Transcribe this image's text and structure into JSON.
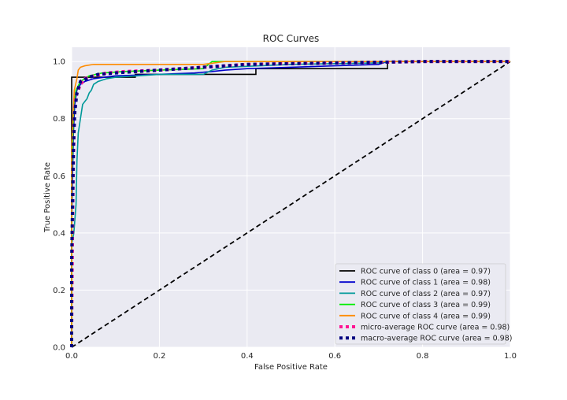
{
  "chart_data": {
    "type": "line",
    "title": "ROC Curves",
    "xlabel": "False Positive Rate",
    "ylabel": "True Positive Rate",
    "xlim": [
      0,
      1.0
    ],
    "ylim": [
      0,
      1.05
    ],
    "x_ticks": [
      "0.0",
      "0.2",
      "0.4",
      "0.6",
      "0.8",
      "1.0"
    ],
    "y_ticks": [
      "0.0",
      "0.2",
      "0.4",
      "0.6",
      "0.8",
      "1.0"
    ],
    "grid": true,
    "legend_position": "lower-right",
    "background_color": "#eaeaf2",
    "series": [
      {
        "name": "ROC curve of class 0 (area = 0.97)",
        "color": "#000000",
        "style": "solid",
        "points": [
          [
            0,
            0
          ],
          [
            0,
            0.945
          ],
          [
            0.01,
            0.945
          ],
          [
            0.01,
            0.945
          ],
          [
            0.145,
            0.945
          ],
          [
            0.145,
            0.955
          ],
          [
            0.42,
            0.955
          ],
          [
            0.42,
            0.975
          ],
          [
            0.72,
            0.975
          ],
          [
            0.72,
            1.0
          ],
          [
            1.0,
            1.0
          ]
        ]
      },
      {
        "name": "ROC curve of class 1 (area = 0.98)",
        "color": "#0000cc",
        "style": "solid",
        "points": [
          [
            0,
            0
          ],
          [
            0,
            0.42
          ],
          [
            0.002,
            0.6
          ],
          [
            0.004,
            0.75
          ],
          [
            0.007,
            0.85
          ],
          [
            0.012,
            0.9
          ],
          [
            0.02,
            0.92
          ],
          [
            0.03,
            0.93
          ],
          [
            0.05,
            0.94
          ],
          [
            0.1,
            0.95
          ],
          [
            0.2,
            0.955
          ],
          [
            0.28,
            0.96
          ],
          [
            0.32,
            0.965
          ],
          [
            0.35,
            0.97
          ],
          [
            0.4,
            0.975
          ],
          [
            0.5,
            0.98
          ],
          [
            0.6,
            0.985
          ],
          [
            0.7,
            0.99
          ],
          [
            0.72,
            1.0
          ],
          [
            1.0,
            1.0
          ]
        ]
      },
      {
        "name": "ROC curve of class 2 (area = 0.97)",
        "color": "#009999",
        "style": "solid",
        "points": [
          [
            0,
            0
          ],
          [
            0,
            0.36
          ],
          [
            0.005,
            0.4
          ],
          [
            0.01,
            0.5
          ],
          [
            0.012,
            0.65
          ],
          [
            0.015,
            0.75
          ],
          [
            0.02,
            0.8
          ],
          [
            0.025,
            0.85
          ],
          [
            0.035,
            0.87
          ],
          [
            0.04,
            0.89
          ],
          [
            0.045,
            0.9
          ],
          [
            0.05,
            0.92
          ],
          [
            0.06,
            0.93
          ],
          [
            0.08,
            0.94
          ],
          [
            0.1,
            0.945
          ],
          [
            0.15,
            0.95
          ],
          [
            0.2,
            0.955
          ],
          [
            0.3,
            0.955
          ],
          [
            0.32,
            0.97
          ],
          [
            0.35,
            0.98
          ],
          [
            0.5,
            0.99
          ],
          [
            0.7,
            0.995
          ],
          [
            0.72,
            1.0
          ],
          [
            1.0,
            1.0
          ]
        ]
      },
      {
        "name": "ROC curve of class 3 (area = 0.99)",
        "color": "#00ee00",
        "style": "solid",
        "points": [
          [
            0,
            0
          ],
          [
            0,
            0.6
          ],
          [
            0.003,
            0.75
          ],
          [
            0.005,
            0.85
          ],
          [
            0.01,
            0.9
          ],
          [
            0.02,
            0.93
          ],
          [
            0.04,
            0.95
          ],
          [
            0.07,
            0.96
          ],
          [
            0.12,
            0.965
          ],
          [
            0.2,
            0.97
          ],
          [
            0.3,
            0.975
          ],
          [
            0.32,
            1.0
          ],
          [
            1.0,
            1.0
          ]
        ]
      },
      {
        "name": "ROC curve of class 4 (area = 0.99)",
        "color": "#ff8c00",
        "style": "solid",
        "points": [
          [
            0,
            0
          ],
          [
            0,
            0.7
          ],
          [
            0.003,
            0.8
          ],
          [
            0.006,
            0.9
          ],
          [
            0.012,
            0.94
          ],
          [
            0.015,
            0.97
          ],
          [
            0.02,
            0.98
          ],
          [
            0.03,
            0.985
          ],
          [
            0.05,
            0.99
          ],
          [
            0.3,
            0.99
          ],
          [
            0.35,
            1.0
          ],
          [
            1.0,
            1.0
          ]
        ]
      },
      {
        "name": "micro-average ROC curve (area = 0.98)",
        "color": "#ff1493",
        "style": "dotted",
        "points": [
          [
            0,
            0
          ],
          [
            0,
            0.05
          ],
          [
            0.002,
            0.4
          ],
          [
            0.004,
            0.65
          ],
          [
            0.006,
            0.8
          ],
          [
            0.01,
            0.88
          ],
          [
            0.02,
            0.92
          ],
          [
            0.03,
            0.94
          ],
          [
            0.05,
            0.95
          ],
          [
            0.08,
            0.96
          ],
          [
            0.12,
            0.965
          ],
          [
            0.2,
            0.97
          ],
          [
            0.3,
            0.98
          ],
          [
            0.4,
            0.99
          ],
          [
            0.6,
            0.995
          ],
          [
            0.8,
            1.0
          ],
          [
            1.0,
            1.0
          ]
        ]
      },
      {
        "name": "macro-average ROC curve (area = 0.98)",
        "color": "#000080",
        "style": "dotted",
        "points": [
          [
            0,
            0
          ],
          [
            0,
            0.3
          ],
          [
            0.002,
            0.5
          ],
          [
            0.004,
            0.7
          ],
          [
            0.007,
            0.82
          ],
          [
            0.012,
            0.89
          ],
          [
            0.02,
            0.93
          ],
          [
            0.04,
            0.945
          ],
          [
            0.06,
            0.955
          ],
          [
            0.1,
            0.96
          ],
          [
            0.15,
            0.965
          ],
          [
            0.2,
            0.97
          ],
          [
            0.3,
            0.98
          ],
          [
            0.4,
            0.99
          ],
          [
            0.6,
            0.995
          ],
          [
            0.8,
            1.0
          ],
          [
            1.0,
            1.0
          ]
        ]
      }
    ],
    "reference_line": {
      "color": "#000000",
      "style": "dashed",
      "points": [
        [
          0,
          0
        ],
        [
          1,
          1
        ]
      ]
    }
  }
}
